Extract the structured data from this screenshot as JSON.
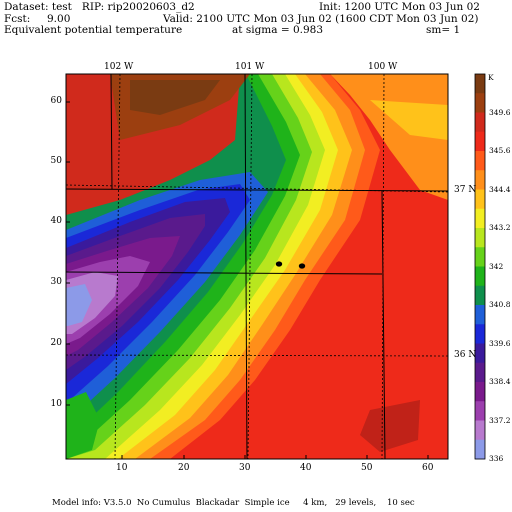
{
  "header": {
    "dataset": "Dataset: test   RIP: rip20020603_d2",
    "init": "Init: 1200 UTC Mon 03 Jun 02",
    "fcst": "Fcst:     9.00",
    "valid": "Valid: 2100 UTC Mon 03 Jun 02 (1600 CDT Mon 03 Jun 02)",
    "field": "Equivalent potential temperature",
    "sigma": "at sigma = 0.983",
    "sm": "sm= 1"
  },
  "top_axis": {
    "lon_labels": [
      "102 W",
      "101 W",
      "100 W"
    ]
  },
  "right_axis": {
    "lat_labels": [
      "37 N",
      "36 N"
    ]
  },
  "left_axis": {
    "ticks": [
      "60",
      "50",
      "40",
      "30",
      "20",
      "10"
    ]
  },
  "bottom_axis": {
    "ticks": [
      "10",
      "20",
      "30",
      "40",
      "50",
      "60"
    ]
  },
  "colorbar": {
    "unit": "K",
    "labels": [
      "349.6",
      "345.6",
      "344.4",
      "343.2",
      "342",
      "340.8",
      "339.6",
      "338.4",
      "337.2",
      "336"
    ],
    "colors": [
      "#7a3b12",
      "#9c3f10",
      "#d02a1c",
      "#ee2a1a",
      "#ff5a1a",
      "#ff8f1a",
      "#ffc21a",
      "#f2ee22",
      "#b8e61e",
      "#66d21a",
      "#1fb31a",
      "#0f8f4c",
      "#1f5fd8",
      "#1a28d8",
      "#3a1a9c",
      "#5a1a8c",
      "#7a1a8c",
      "#9c3fae",
      "#b87ace",
      "#8c9ae8"
    ]
  },
  "markers": {
    "count": 2
  },
  "footer": {
    "model_info": "Model info: V3.5.0  No Cumulus  Blackadar  Simple ice     4 km,   29 levels,    10 sec"
  }
}
